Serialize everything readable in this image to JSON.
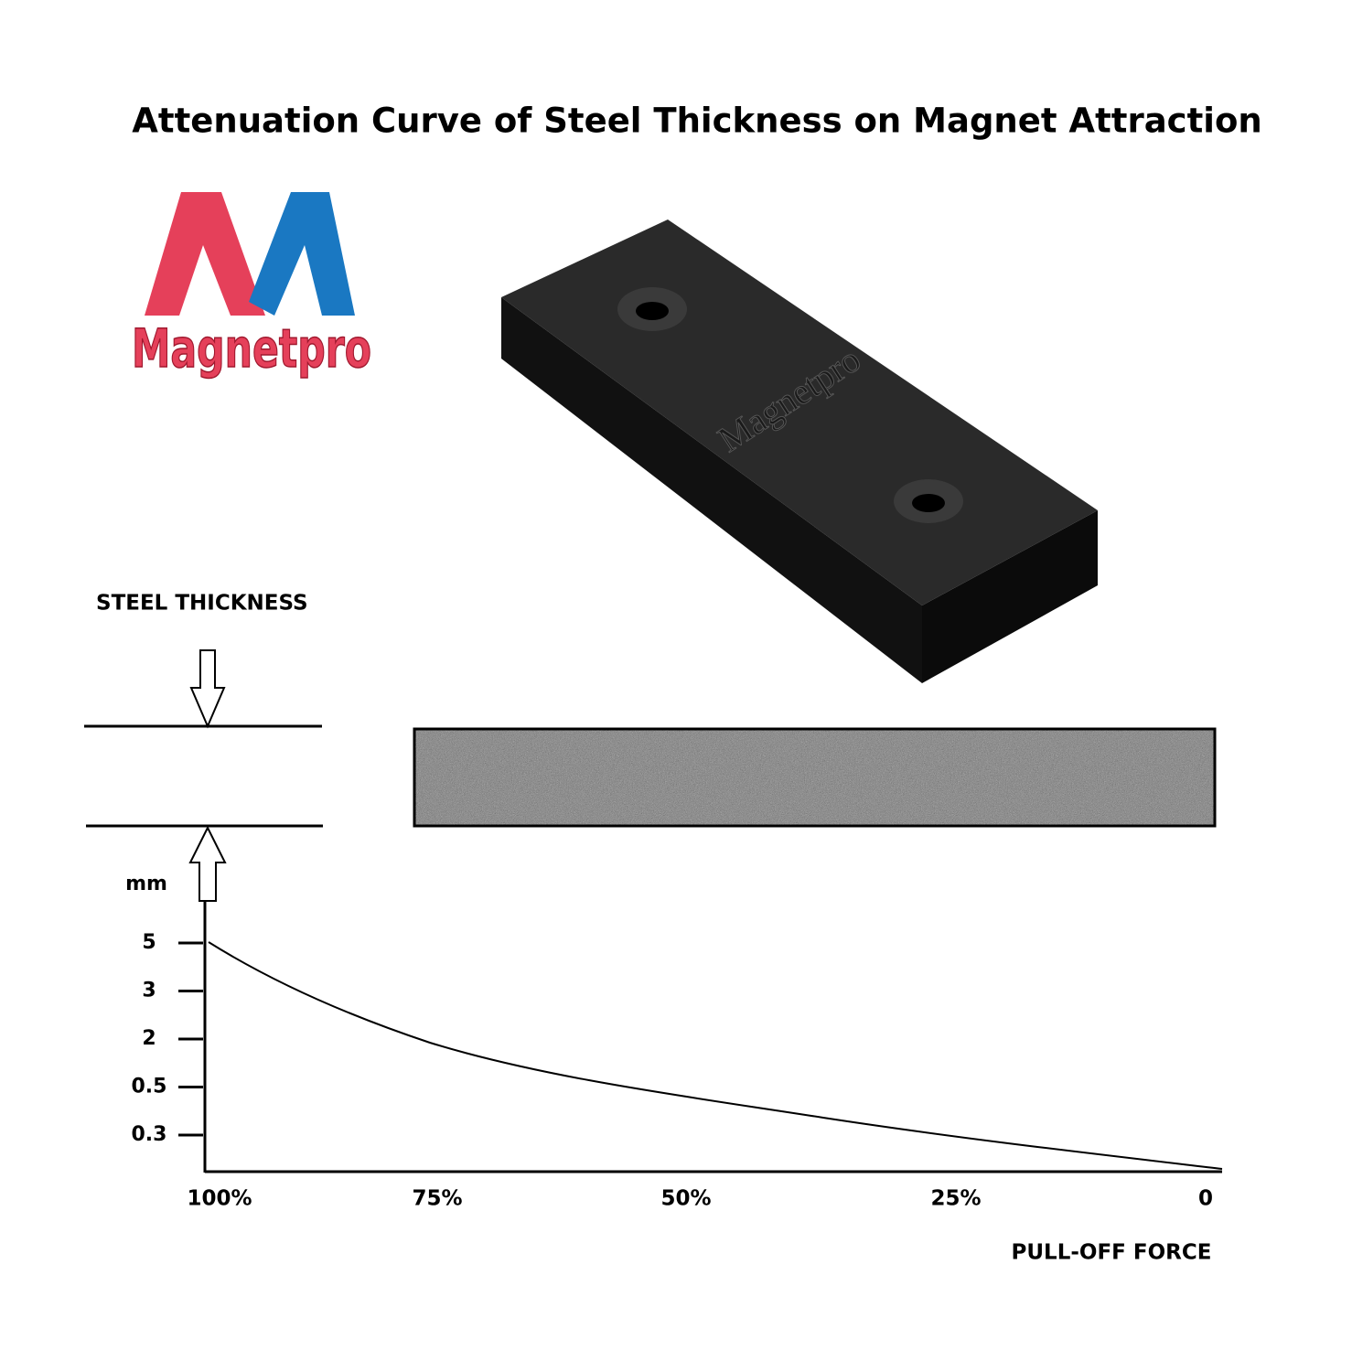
{
  "title": "Attenuation Curve of Steel Thickness on Magnet Attraction",
  "logo": {
    "text": "Magnetpro"
  },
  "product": {
    "engraving": "Magnetpro"
  },
  "diagram": {
    "steel_label": "STEEL THICKNESS",
    "y_unit": "mm",
    "y_labels": [
      "5",
      "3",
      "2",
      "0.5",
      "0.3"
    ],
    "x_labels": [
      "100%",
      "75%",
      "50%",
      "25%",
      "0"
    ],
    "x_title": "PULL-OFF FORCE"
  }
}
